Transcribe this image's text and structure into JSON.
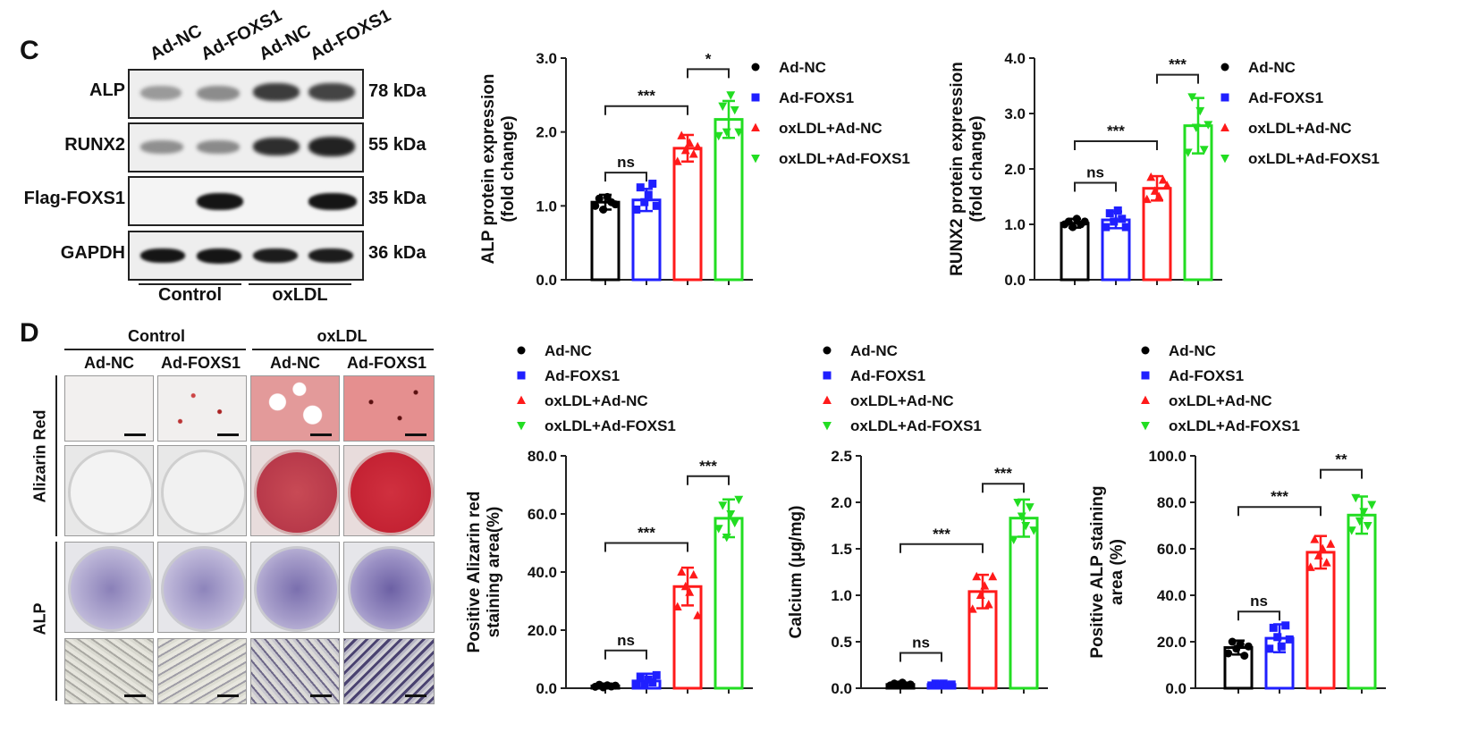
{
  "panelC": {
    "letter": "C",
    "columns": [
      "Ad-NC",
      "Ad-FOXS1",
      "Ad-NC",
      "Ad-FOXS1"
    ],
    "rows": [
      {
        "label": "ALP",
        "kda": "78 kDa"
      },
      {
        "label": "RUNX2",
        "kda": "55 kDa"
      },
      {
        "label": "Flag-FOXS1",
        "kda": "35 kDa"
      },
      {
        "label": "GAPDH",
        "kda": "36 kDa"
      }
    ],
    "groups": [
      "Control",
      "oxLDL"
    ]
  },
  "panelD": {
    "letter": "D",
    "groups": [
      "Control",
      "oxLDL"
    ],
    "columns": [
      "Ad-NC",
      "Ad-FOXS1",
      "Ad-NC",
      "Ad-FOXS1"
    ],
    "rowLabels": [
      "Alizarin Red",
      "ALP"
    ]
  },
  "legend": [
    {
      "label": "Ad-NC",
      "color": "#000000",
      "marker": "circle"
    },
    {
      "label": "Ad-FOXS1",
      "color": "#1f1fff",
      "marker": "square"
    },
    {
      "label": "oxLDL+Ad-NC",
      "color": "#ff1a1a",
      "marker": "triangle-up"
    },
    {
      "label": "oxLDL+Ad-FOXS1",
      "color": "#22dd22",
      "marker": "triangle-down"
    }
  ],
  "chart_data": [
    {
      "id": "alp",
      "type": "bar",
      "ylabel": [
        "ALP  protein expression",
        "(fold change)"
      ],
      "ylim": [
        0,
        3
      ],
      "yticks": [
        "0.0",
        "1.0",
        "2.0",
        "3.0"
      ],
      "ytickValues": [
        0,
        1,
        2,
        3
      ],
      "categories": [
        "Ad-NC",
        "Ad-FOXS1",
        "oxLDL+Ad-NC",
        "oxLDL+Ad-FOXS1"
      ],
      "values": [
        1.05,
        1.08,
        1.78,
        2.17
      ],
      "errors": [
        0.1,
        0.15,
        0.18,
        0.25
      ],
      "points": [
        [
          1.0,
          1.1,
          0.95,
          1.12,
          1.05,
          1.02
        ],
        [
          0.95,
          1.25,
          1.05,
          1.15,
          1.3,
          1.0
        ],
        [
          1.6,
          1.95,
          1.75,
          1.85,
          1.7,
          1.8
        ],
        [
          1.95,
          2.35,
          2.0,
          2.5,
          2.3,
          2.0
        ]
      ],
      "comparisons": [
        {
          "from": 0,
          "to": 1,
          "label": "ns",
          "y": 1.45
        },
        {
          "from": 0,
          "to": 2,
          "label": "***",
          "y": 2.35
        },
        {
          "from": 2,
          "to": 3,
          "label": "*",
          "y": 2.85
        }
      ]
    },
    {
      "id": "runx2",
      "type": "bar",
      "ylabel": [
        "RUNX2  protein expression",
        "(fold change)"
      ],
      "ylim": [
        0,
        4
      ],
      "yticks": [
        "0.0",
        "1.0",
        "2.0",
        "3.0",
        "4.0"
      ],
      "ytickValues": [
        0,
        1,
        2,
        3,
        4
      ],
      "categories": [
        "Ad-NC",
        "Ad-FOXS1",
        "oxLDL+Ad-NC",
        "oxLDL+Ad-FOXS1"
      ],
      "values": [
        1.02,
        1.08,
        1.65,
        2.78
      ],
      "errors": [
        0.08,
        0.15,
        0.22,
        0.5
      ],
      "points": [
        [
          1.0,
          1.05,
          0.95,
          1.1,
          1.0,
          1.05
        ],
        [
          0.95,
          1.2,
          1.05,
          1.25,
          1.1,
          0.95
        ],
        [
          1.45,
          1.85,
          1.6,
          1.5,
          1.8,
          1.7
        ],
        [
          2.3,
          3.3,
          2.75,
          3.05,
          2.35,
          2.8
        ]
      ],
      "comparisons": [
        {
          "from": 0,
          "to": 1,
          "label": "ns",
          "y": 1.75
        },
        {
          "from": 0,
          "to": 2,
          "label": "***",
          "y": 2.5
        },
        {
          "from": 2,
          "to": 3,
          "label": "***",
          "y": 3.7
        }
      ]
    },
    {
      "id": "alizarin",
      "type": "bar",
      "ylabel": [
        "Positive Alizarin red",
        "staining area(%)"
      ],
      "ylim": [
        0,
        80
      ],
      "yticks": [
        "0.0",
        "20.0",
        "40.0",
        "60.0",
        "80.0"
      ],
      "ytickValues": [
        0,
        20,
        40,
        60,
        80
      ],
      "categories": [
        "Ad-NC",
        "Ad-FOXS1",
        "oxLDL+Ad-NC",
        "oxLDL+Ad-FOXS1"
      ],
      "values": [
        0.8,
        2.5,
        35,
        58.5
      ],
      "errors": [
        0.8,
        2.5,
        6.5,
        6.5
      ],
      "points": [
        [
          0.5,
          1.2,
          0.3,
          1.0,
          0.6,
          0.9
        ],
        [
          1.5,
          4.0,
          1.0,
          3.0,
          2.0,
          4.5
        ],
        [
          28,
          40,
          35,
          33,
          39,
          25
        ],
        [
          55,
          63,
          52,
          60,
          57,
          65
        ]
      ],
      "comparisons": [
        {
          "from": 0,
          "to": 1,
          "label": "ns",
          "y": 13
        },
        {
          "from": 0,
          "to": 2,
          "label": "***",
          "y": 50
        },
        {
          "from": 2,
          "to": 3,
          "label": "***",
          "y": 73
        }
      ]
    },
    {
      "id": "calcium",
      "type": "bar",
      "ylabel": [
        "Calcium (μg/mg)"
      ],
      "ylim": [
        0,
        2.5
      ],
      "yticks": [
        "0.0",
        "0.5",
        "1.0",
        "1.5",
        "2.0",
        "2.5"
      ],
      "ytickValues": [
        0,
        0.5,
        1.0,
        1.5,
        2.0,
        2.5
      ],
      "categories": [
        "Ad-NC",
        "Ad-FOXS1",
        "oxLDL+Ad-NC",
        "oxLDL+Ad-FOXS1"
      ],
      "values": [
        0.04,
        0.04,
        1.04,
        1.83
      ],
      "errors": [
        0.02,
        0.02,
        0.18,
        0.2
      ],
      "points": [
        [
          0.03,
          0.05,
          0.04,
          0.06,
          0.03,
          0.04
        ],
        [
          0.03,
          0.05,
          0.04,
          0.05,
          0.03,
          0.04
        ],
        [
          0.85,
          1.2,
          1.0,
          1.1,
          0.9,
          1.2
        ],
        [
          1.6,
          2.0,
          1.85,
          1.75,
          1.95,
          1.7
        ]
      ],
      "comparisons": [
        {
          "from": 0,
          "to": 1,
          "label": "ns",
          "y": 0.38
        },
        {
          "from": 0,
          "to": 2,
          "label": "***",
          "y": 1.55
        },
        {
          "from": 2,
          "to": 3,
          "label": "***",
          "y": 2.2
        }
      ]
    },
    {
      "id": "alpstain",
      "type": "bar",
      "ylabel": [
        "Positive ALP staining",
        "area (%)"
      ],
      "ylim": [
        0,
        100
      ],
      "yticks": [
        "0.0",
        "20.0",
        "40.0",
        "60.0",
        "80.0",
        "100.0"
      ],
      "ytickValues": [
        0,
        20,
        40,
        60,
        80,
        100
      ],
      "categories": [
        "Ad-NC",
        "Ad-FOXS1",
        "oxLDL+Ad-NC",
        "oxLDL+Ad-FOXS1"
      ],
      "values": [
        17.5,
        21.5,
        58.5,
        74.5
      ],
      "errors": [
        3.0,
        6.0,
        7.0,
        8.0
      ],
      "points": [
        [
          15,
          20,
          17,
          19,
          14,
          18
        ],
        [
          17,
          26,
          22,
          18,
          27,
          21
        ],
        [
          52,
          64,
          57,
          60,
          54,
          62
        ],
        [
          68,
          82,
          72,
          76,
          70,
          79
        ]
      ],
      "comparisons": [
        {
          "from": 0,
          "to": 1,
          "label": "ns",
          "y": 33
        },
        {
          "from": 0,
          "to": 2,
          "label": "***",
          "y": 78
        },
        {
          "from": 2,
          "to": 3,
          "label": "**",
          "y": 94
        }
      ]
    }
  ]
}
